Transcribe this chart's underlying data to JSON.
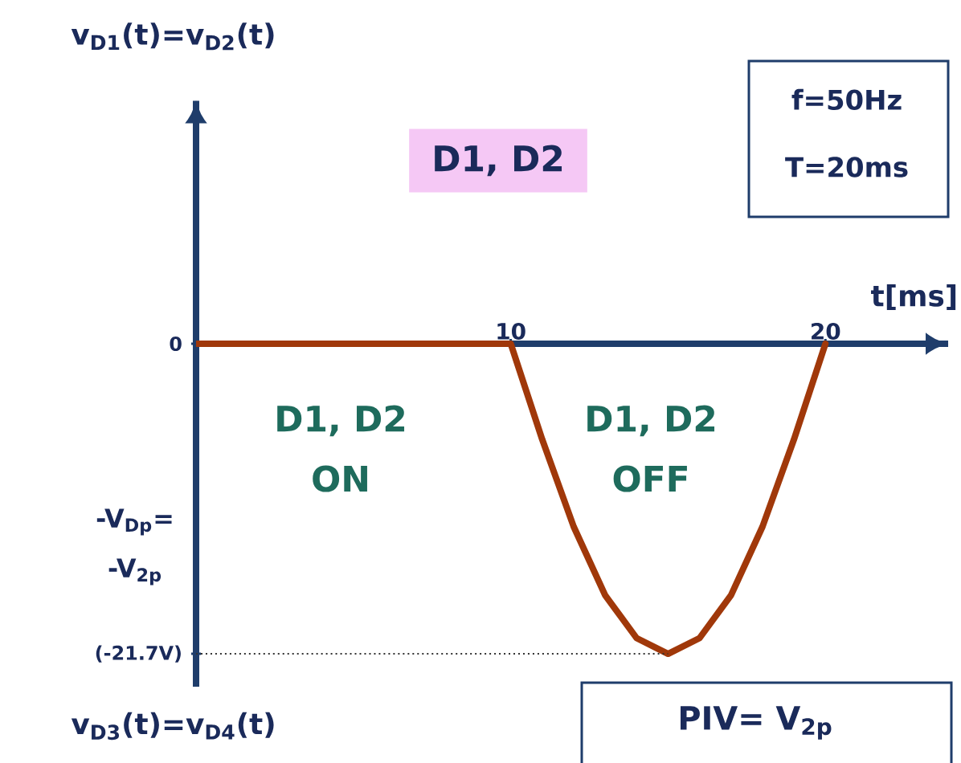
{
  "chart_data": {
    "type": "line",
    "ylabel": "v$_{D1}$(t)=v$_{D2}$(t)",
    "xlabel": "t[ms]",
    "x": [
      0,
      10,
      11,
      12,
      13,
      14,
      15,
      16,
      17,
      18,
      19,
      20
    ],
    "series": [
      {
        "color": "#a0380a",
        "values": [
          0,
          0,
          -6.7,
          -12.8,
          -17.6,
          -20.6,
          -21.7,
          -20.6,
          -17.6,
          -12.8,
          -6.7,
          0
        ]
      }
    ],
    "xlim": [
      0,
      23.9
    ],
    "ylim": [
      -24,
      17
    ],
    "xticks": [
      10,
      20
    ],
    "yticks": [
      {
        "value": 0,
        "label": "0"
      },
      {
        "value": -21.7,
        "label": "(-21.7V)"
      }
    ],
    "line_style": "solid",
    "marker": "none",
    "ref_lines": [
      {
        "axis": "y",
        "value": -21.7,
        "line_style": "dotted",
        "color": "#333333"
      }
    ],
    "annotations": [
      "D1, D2",
      "f=50Hz",
      "T=20ms",
      "D1, D2",
      "ON",
      "D1, D2",
      "OFF",
      "PIV= V$_{2p}$",
      "v$_{D3}$(t)=v$_{D4}$(t)",
      "-V$_{Dp}$=",
      "-V$_{2p}$"
    ]
  }
}
